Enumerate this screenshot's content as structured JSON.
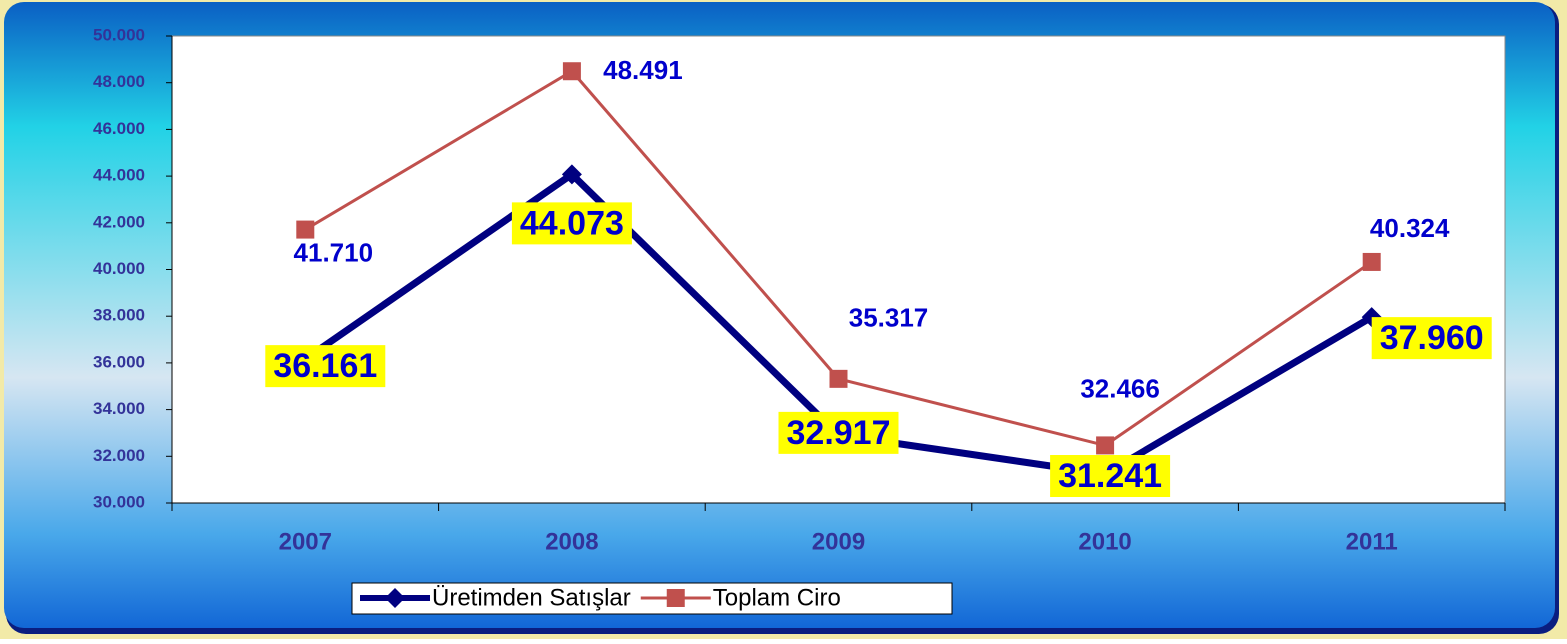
{
  "chart_data": {
    "type": "line",
    "categories": [
      "2007",
      "2008",
      "2009",
      "2010",
      "2011"
    ],
    "series": [
      {
        "name": "Üretimden Satışlar",
        "color": "#000080",
        "values": [
          36161,
          44073,
          32917,
          31241,
          37960
        ],
        "value_labels": [
          "36.161",
          "44.073",
          "32.917",
          "31.241",
          "37.960"
        ]
      },
      {
        "name": "Toplam Ciro",
        "color": "#c0504d",
        "values": [
          41710,
          48491,
          35317,
          32466,
          40324
        ],
        "value_labels": [
          "41.710",
          "48.491",
          "35.317",
          "32.466",
          "40.324"
        ]
      }
    ],
    "ylim": [
      30000,
      50000
    ],
    "yticks": [
      {
        "value": 30000,
        "label": "30.000"
      },
      {
        "value": 32000,
        "label": "32.000"
      },
      {
        "value": 34000,
        "label": "34.000"
      },
      {
        "value": 36000,
        "label": "36.000"
      },
      {
        "value": 38000,
        "label": "38.000"
      },
      {
        "value": 40000,
        "label": "40.000"
      },
      {
        "value": 42000,
        "label": "42.000"
      },
      {
        "value": 44000,
        "label": "44.000"
      },
      {
        "value": 46000,
        "label": "46.000"
      },
      {
        "value": 48000,
        "label": "48.000"
      },
      {
        "value": 50000,
        "label": "50.000"
      }
    ],
    "grid": false,
    "legend": "bottom"
  }
}
